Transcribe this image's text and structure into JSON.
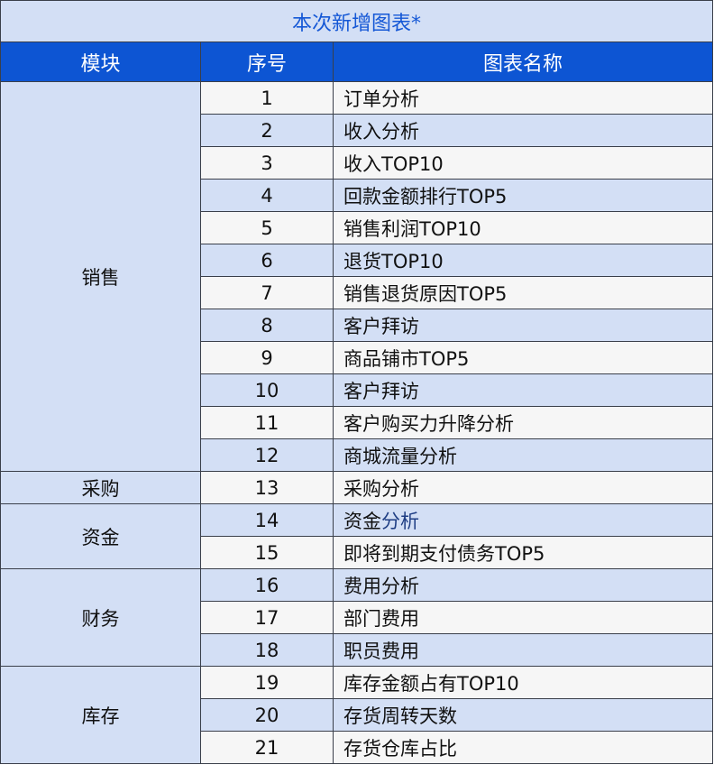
{
  "title": "本次新增图表*",
  "headers": {
    "module": "模块",
    "index": "序号",
    "name": "图表名称"
  },
  "colors": {
    "header_bg": "#0d55d3",
    "title_text": "#1558d6",
    "light_row": "#d3dff5",
    "plain_row": "#f6f6f6"
  },
  "modules": [
    "销售",
    "采购",
    "资金",
    "财务",
    "库存"
  ],
  "rows": [
    {
      "index": "1",
      "name": "订单分析"
    },
    {
      "index": "2",
      "name": "收入分析"
    },
    {
      "index": "3",
      "name": "收入TOP10"
    },
    {
      "index": "4",
      "name": "回款金额排行TOP5"
    },
    {
      "index": "5",
      "name": "销售利润TOP10"
    },
    {
      "index": "6",
      "name": "退货TOP10"
    },
    {
      "index": "7",
      "name": "销售退货原因TOP5"
    },
    {
      "index": "8",
      "name": "客户拜访"
    },
    {
      "index": "9",
      "name": "商品铺市TOP5"
    },
    {
      "index": "10",
      "name": "客户拜访"
    },
    {
      "index": "11",
      "name": "客户购买力升降分析"
    },
    {
      "index": "12",
      "name": "商城流量分析"
    },
    {
      "index": "13",
      "name": "采购分析"
    },
    {
      "index": "14",
      "name": "资金",
      "name_accent": "分析"
    },
    {
      "index": "15",
      "name": "即将到期支付债务TOP5"
    },
    {
      "index": "16",
      "name": "费用分析"
    },
    {
      "index": "17",
      "name": "部门费用"
    },
    {
      "index": "18",
      "name": "职员费用"
    },
    {
      "index": "19",
      "name": "库存金额占有TOP10"
    },
    {
      "index": "20",
      "name": "存货周转天数"
    },
    {
      "index": "21",
      "name": "存货仓库占比"
    }
  ]
}
